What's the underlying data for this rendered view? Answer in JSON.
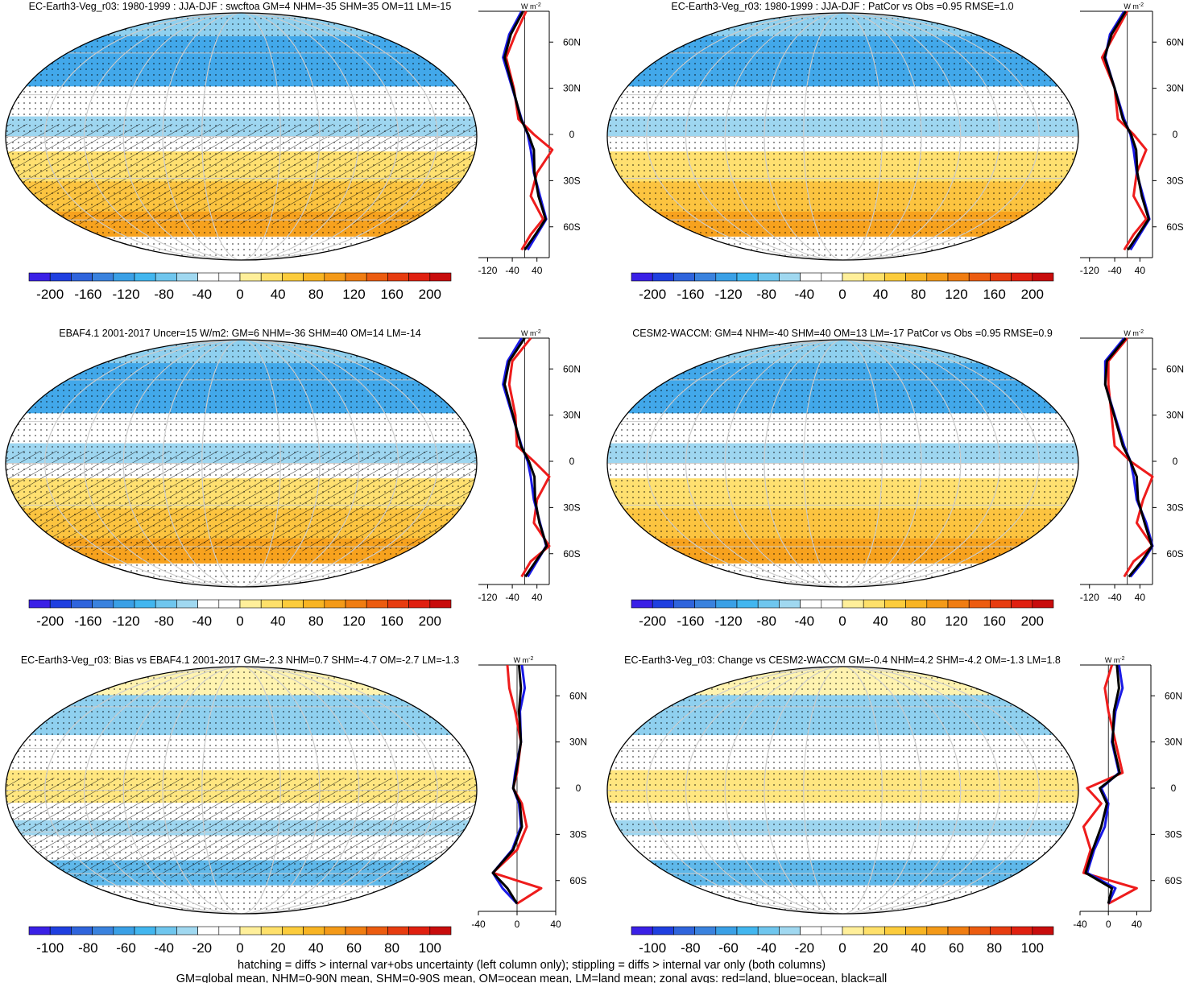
{
  "panels": [
    {
      "title": "EC-Earth3-Veg_r03: 1980-1999 : JJA-DJF : swcftoa GM=4 NHM=-35 SHM=35 OM=11 LM=-15",
      "colorbar": [
        "-200",
        "-160",
        "-120",
        "-80",
        "-40",
        "0",
        "40",
        "80",
        "120",
        "160",
        "200"
      ],
      "zonal_ticks": [
        "-120",
        "-40",
        "40"
      ]
    },
    {
      "title": "EC-Earth3-Veg_r03: 1980-1999 : JJA-DJF : PatCor vs Obs =0.95 RMSE=1.0",
      "colorbar": [
        "-200",
        "-160",
        "-120",
        "-80",
        "-40",
        "0",
        "40",
        "80",
        "120",
        "160",
        "200"
      ],
      "zonal_ticks": [
        "-120",
        "-40",
        "40"
      ]
    },
    {
      "title": "EBAF4.1 2001-2017 Uncer=15 W/m2: GM=6 NHM=-36 SHM=40 OM=14 LM=-14",
      "colorbar": [
        "-200",
        "-160",
        "-120",
        "-80",
        "-40",
        "0",
        "40",
        "80",
        "120",
        "160",
        "200"
      ],
      "zonal_ticks": [
        "-120",
        "-40",
        "40"
      ]
    },
    {
      "title": "CESM2-WACCM: GM=4 NHM=-40 SHM=40 OM=13 LM=-17 PatCor vs Obs =0.95 RMSE=0.9",
      "colorbar": [
        "-200",
        "-160",
        "-120",
        "-80",
        "-40",
        "0",
        "40",
        "80",
        "120",
        "160",
        "200"
      ],
      "zonal_ticks": [
        "-120",
        "-40",
        "40"
      ]
    },
    {
      "title": "EC-Earth3-Veg_r03: Bias vs EBAF4.1 2001-2017 GM=-2.3 NHM=0.7 SHM=-4.7 OM=-2.7 LM=-1.3",
      "colorbar": [
        "-100",
        "-80",
        "-60",
        "-40",
        "-20",
        "0",
        "20",
        "40",
        "60",
        "80",
        "100"
      ],
      "zonal_ticks": [
        "-40",
        "0",
        "40"
      ]
    },
    {
      "title": "EC-Earth3-Veg_r03: Change vs CESM2-WACCM GM=-0.4 NHM=4.2 SHM=-4.2 OM=-1.3 LM=1.8",
      "colorbar": [
        "-100",
        "-80",
        "-60",
        "-40",
        "-20",
        "0",
        "20",
        "40",
        "60",
        "80",
        "100"
      ],
      "zonal_ticks": [
        "-40",
        "0",
        "40"
      ]
    }
  ],
  "lat_labels": [
    "60N",
    "30N",
    "0",
    "30S",
    "60S"
  ],
  "unit": "W m",
  "unit_exp": "-2",
  "footer": {
    "line1": "hatching = diffs > internal var+obs uncertainty (left column only); stippling = diffs > internal var only (both columns)",
    "line2": "GM=global mean, NHM=0-90N mean, SHM=0-90S mean, OM=ocean mean, LM=land mean; zonal avgs: red=land, blue=ocean, black=all"
  },
  "colors": {
    "land": "#ee1c1c",
    "ocean": "#1a1ae6",
    "all": "#000000",
    "colorbar": [
      "#3a20e6",
      "#1f3fe0",
      "#2f64dc",
      "#3a82de",
      "#3aa0e6",
      "#42b6ef",
      "#6fc6ee",
      "#a0d8f0",
      "#ffffff",
      "#ffffff",
      "#ffef9a",
      "#fee06a",
      "#fccc3c",
      "#f8b423",
      "#f49a18",
      "#f07d12",
      "#ec5c10",
      "#e73c10",
      "#e02010",
      "#c80c0c"
    ]
  },
  "chart_data": [
    {
      "type": "map+line",
      "series": [
        {
          "name": "land",
          "lat": [
            80,
            65,
            50,
            30,
            10,
            0,
            -10,
            -25,
            -40,
            -55,
            -65,
            -75
          ],
          "values": [
            5,
            -30,
            -60,
            -35,
            -20,
            30,
            90,
            40,
            20,
            60,
            20,
            -10
          ]
        },
        {
          "name": "ocean",
          "lat": [
            80,
            65,
            50,
            30,
            10,
            0,
            -10,
            -25,
            -40,
            -55,
            -65,
            -75
          ],
          "values": [
            -10,
            -50,
            -70,
            -40,
            -10,
            10,
            20,
            30,
            50,
            70,
            40,
            10
          ]
        },
        {
          "name": "all",
          "lat": [
            80,
            65,
            50,
            30,
            10,
            0,
            -10,
            -25,
            -40,
            -55,
            -65,
            -75
          ],
          "values": [
            -5,
            -45,
            -65,
            -38,
            -12,
            12,
            30,
            32,
            45,
            68,
            35,
            0
          ]
        }
      ]
    },
    {
      "type": "map+line",
      "series": [
        {
          "name": "land",
          "lat": [
            80,
            65,
            50,
            30,
            10,
            0,
            -10,
            -25,
            -40,
            -55,
            -65,
            -75
          ],
          "values": [
            0,
            -40,
            -80,
            -40,
            -30,
            20,
            60,
            30,
            20,
            60,
            20,
            -10
          ]
        },
        {
          "name": "ocean",
          "lat": [
            80,
            65,
            50,
            30,
            10,
            0,
            -10,
            -25,
            -40,
            -55,
            -65,
            -75
          ],
          "values": [
            -10,
            -55,
            -70,
            -40,
            -10,
            10,
            20,
            30,
            50,
            70,
            40,
            10
          ]
        },
        {
          "name": "all",
          "lat": [
            80,
            65,
            50,
            30,
            10,
            0,
            -10,
            -25,
            -40,
            -55,
            -65,
            -75
          ],
          "values": [
            -5,
            -50,
            -72,
            -40,
            -14,
            12,
            28,
            32,
            46,
            68,
            35,
            2
          ]
        }
      ]
    },
    {
      "type": "map+line",
      "series": [
        {
          "name": "land",
          "lat": [
            80,
            65,
            50,
            30,
            10,
            0,
            -10,
            -25,
            -40,
            -55,
            -65,
            -75
          ],
          "values": [
            20,
            -40,
            -50,
            -30,
            -25,
            30,
            80,
            40,
            30,
            80,
            20,
            -10
          ]
        },
        {
          "name": "ocean",
          "lat": [
            80,
            65,
            50,
            30,
            10,
            0,
            -10,
            -25,
            -40,
            -55,
            -65,
            -75
          ],
          "values": [
            -10,
            -55,
            -70,
            -40,
            -10,
            10,
            20,
            30,
            50,
            70,
            40,
            10
          ]
        },
        {
          "name": "all",
          "lat": [
            80,
            65,
            50,
            30,
            10,
            0,
            -10,
            -25,
            -40,
            -55,
            -65,
            -75
          ],
          "values": [
            0,
            -50,
            -65,
            -38,
            -12,
            14,
            32,
            34,
            48,
            72,
            36,
            2
          ]
        }
      ]
    },
    {
      "type": "map+line",
      "series": [
        {
          "name": "land",
          "lat": [
            80,
            65,
            50,
            30,
            10,
            0,
            -10,
            -25,
            -40,
            -55,
            -65,
            -75
          ],
          "values": [
            0,
            -60,
            -60,
            -50,
            -40,
            10,
            80,
            50,
            30,
            80,
            20,
            -10
          ]
        },
        {
          "name": "ocean",
          "lat": [
            80,
            65,
            50,
            30,
            10,
            0,
            -10,
            -25,
            -40,
            -55,
            -65,
            -75
          ],
          "values": [
            -10,
            -70,
            -70,
            -40,
            -10,
            10,
            20,
            30,
            60,
            80,
            50,
            10
          ]
        },
        {
          "name": "all",
          "lat": [
            80,
            65,
            50,
            30,
            10,
            0,
            -10,
            -25,
            -40,
            -55,
            -65,
            -75
          ],
          "values": [
            -5,
            -65,
            -70,
            -42,
            -14,
            10,
            30,
            34,
            55,
            78,
            45,
            5
          ]
        }
      ]
    },
    {
      "type": "map+line",
      "series": [
        {
          "name": "land",
          "lat": [
            80,
            65,
            50,
            30,
            10,
            0,
            -10,
            -25,
            -40,
            -55,
            -65,
            -75
          ],
          "values": [
            -10,
            -8,
            -2,
            4,
            0,
            -4,
            5,
            10,
            0,
            -25,
            25,
            0
          ]
        },
        {
          "name": "ocean",
          "lat": [
            80,
            65,
            50,
            30,
            10,
            0,
            -10,
            -25,
            -40,
            -55,
            -65,
            -75
          ],
          "values": [
            5,
            8,
            3,
            4,
            -2,
            -4,
            2,
            4,
            -5,
            -25,
            -15,
            0
          ]
        },
        {
          "name": "all",
          "lat": [
            80,
            65,
            50,
            30,
            10,
            0,
            -10,
            -25,
            -40,
            -55,
            -65,
            -75
          ],
          "values": [
            2,
            4,
            2,
            4,
            -1,
            -4,
            3,
            5,
            -4,
            -25,
            -10,
            0
          ]
        }
      ]
    },
    {
      "type": "map+line",
      "series": [
        {
          "name": "land",
          "lat": [
            80,
            65,
            50,
            30,
            10,
            0,
            -10,
            -25,
            -40,
            -55,
            -65,
            -75
          ],
          "values": [
            5,
            -5,
            0,
            10,
            20,
            -30,
            -10,
            -35,
            -25,
            -35,
            40,
            0
          ]
        },
        {
          "name": "ocean",
          "lat": [
            80,
            65,
            50,
            30,
            10,
            0,
            -10,
            -25,
            -40,
            -55,
            -65,
            -75
          ],
          "values": [
            15,
            20,
            10,
            5,
            15,
            -10,
            0,
            -5,
            -20,
            -30,
            10,
            0
          ]
        },
        {
          "name": "all",
          "lat": [
            80,
            65,
            50,
            30,
            10,
            0,
            -10,
            -25,
            -40,
            -55,
            -65,
            -75
          ],
          "values": [
            12,
            15,
            8,
            6,
            16,
            -12,
            -2,
            -10,
            -22,
            -32,
            5,
            0
          ]
        }
      ]
    }
  ]
}
